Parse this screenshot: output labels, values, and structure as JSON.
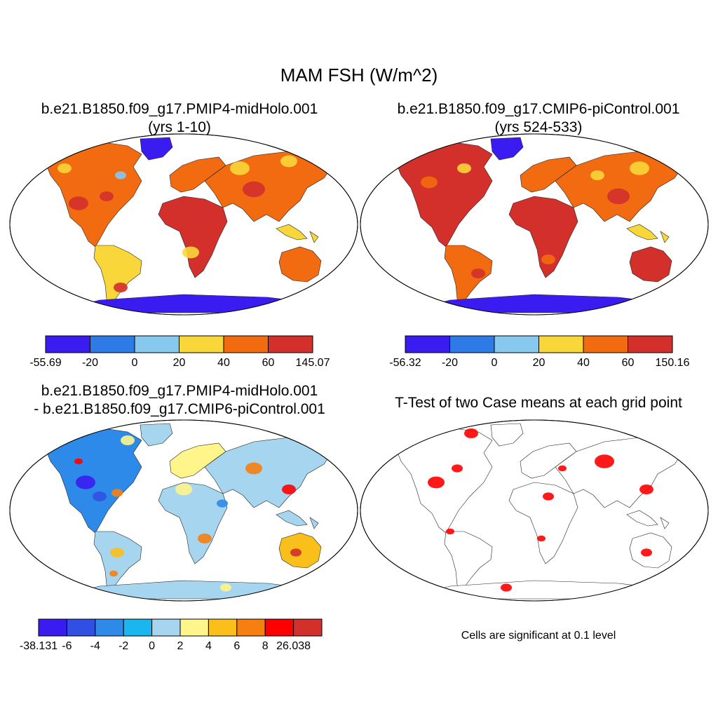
{
  "figure": {
    "title": "MAM FSH (W/m^2)"
  },
  "panels": [
    {
      "id": "midholo",
      "title_line1": "b.e21.B1850.f09_g17.PMIP4-midHolo.001",
      "title_line2": "(yrs 1-10)",
      "colorbar": {
        "colors": [
          "#3b1cf0",
          "#2e7be8",
          "#87c9ee",
          "#f9d73a",
          "#f26b10",
          "#d3302c"
        ],
        "labels": [
          "-55.69",
          "-20",
          "0",
          "20",
          "40",
          "60",
          "145.07"
        ]
      }
    },
    {
      "id": "picontrol",
      "title_line1": "b.e21.B1850.f09_g17.CMIP6-piControl.001",
      "title_line2": "(yrs 524-533)",
      "colorbar": {
        "colors": [
          "#3b1cf0",
          "#2e7be8",
          "#87c9ee",
          "#f9d73a",
          "#f26b10",
          "#d3302c"
        ],
        "labels": [
          "-56.32",
          "-20",
          "0",
          "20",
          "40",
          "60",
          "150.16"
        ]
      }
    },
    {
      "id": "difference",
      "title_line1": "b.e21.B1850.f09_g17.PMIP4-midHolo.001",
      "title_line2": "- b.e21.B1850.f09_g17.CMIP6-piControl.001",
      "colorbar": {
        "colors": [
          "#3b1cf0",
          "#3050e4",
          "#2e8ae8",
          "#19b6f0",
          "#a6d6ef",
          "#fff58a",
          "#fbbf1c",
          "#f67f10",
          "#ff0000",
          "#d3302c"
        ],
        "labels": [
          "-38.131",
          "-6",
          "-4",
          "-2",
          "0",
          "2",
          "4",
          "6",
          "8",
          "26.038"
        ]
      }
    },
    {
      "id": "ttest",
      "title_line1": "T-Test of two Case means at each grid point",
      "note": "Cells are significant at 0.1 level",
      "signif_color": "#ff0000"
    }
  ]
}
